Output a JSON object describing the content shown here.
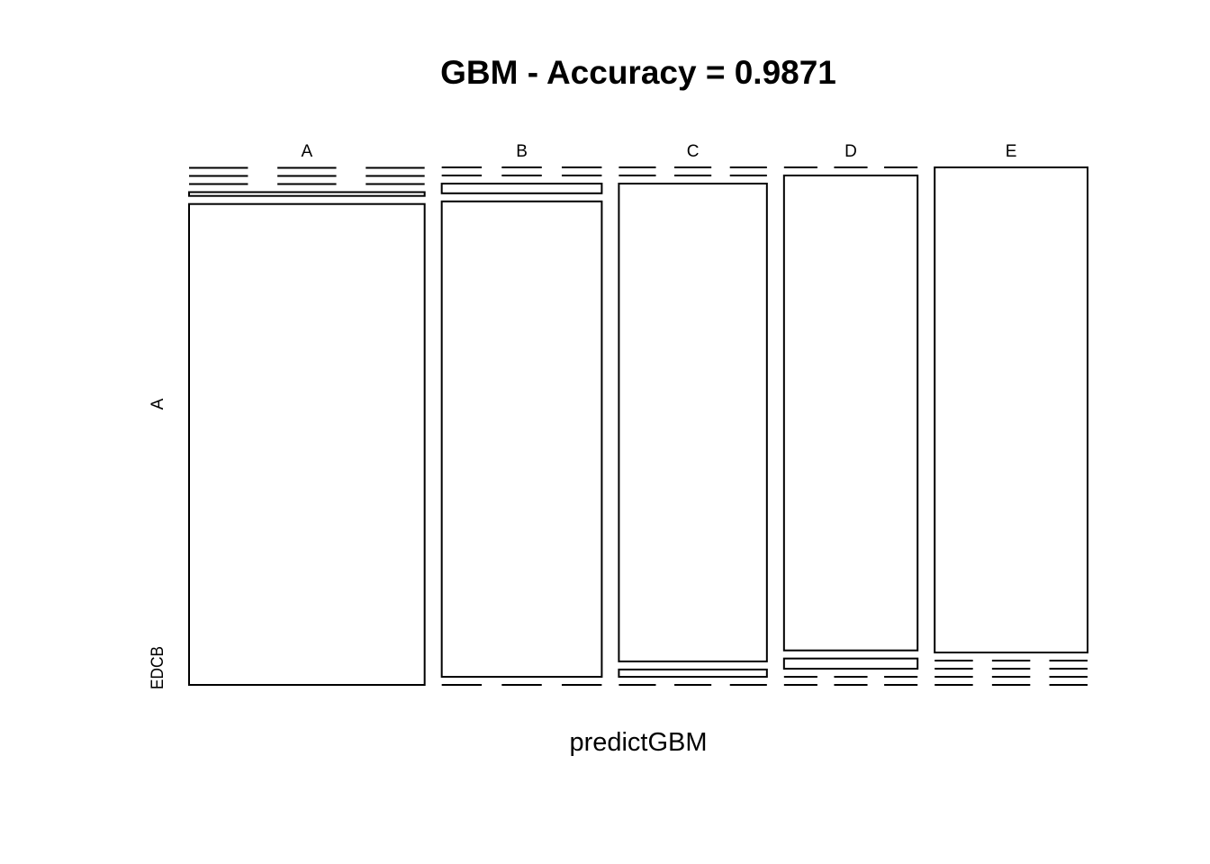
{
  "chart_data": {
    "type": "mosaic",
    "title": "GBM - Accuracy = 0.9871",
    "xlabel": "predictGBM",
    "ylabel": "",
    "x_categories": [
      "A",
      "B",
      "C",
      "D",
      "E"
    ],
    "y_categories": [
      "A",
      "B",
      "C",
      "D",
      "E"
    ],
    "y_tick_labels": [
      "A",
      "EDCB"
    ],
    "column_proportions": [
      0.2672,
      0.1815,
      0.1679,
      0.1515,
      0.1734
    ],
    "cell_proportions": [
      [
        0.9913,
        0.0078,
        0.0,
        0.0009,
        0.0
      ],
      [
        0.0,
        0.98,
        0.02,
        0.0,
        0.0
      ],
      [
        0.0,
        0.015,
        0.985,
        0.0,
        0.0
      ],
      [
        0.0,
        0.0,
        0.021,
        0.979,
        0.0
      ],
      [
        0.0,
        0.0,
        0.0,
        0.0,
        1.0
      ]
    ],
    "legend": "none",
    "grid": false
  }
}
